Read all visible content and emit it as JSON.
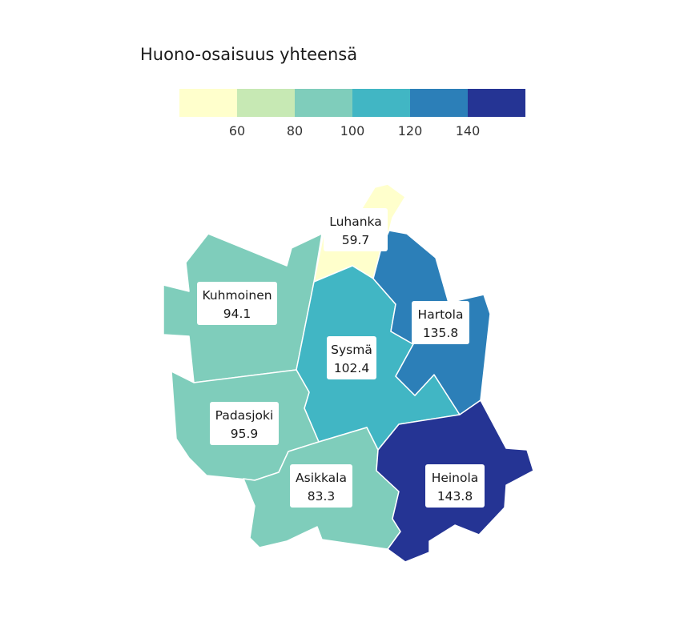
{
  "legend": {
    "title": "Huono-osaisuus yhteensä",
    "colors": [
      "#ffffcc",
      "#c7e9b4",
      "#7fcdbb",
      "#41b6c4",
      "#2c7fb8",
      "#253494"
    ],
    "breaks": [
      60,
      80,
      100,
      120,
      140
    ],
    "tick_labels": [
      "60",
      "80",
      "100",
      "120",
      "140"
    ]
  },
  "regions": [
    {
      "name": "Luhanka",
      "value": "59.7",
      "color": "#ffffcc"
    },
    {
      "name": "Kuhmoinen",
      "value": "94.1",
      "color": "#7fcdbb"
    },
    {
      "name": "Sysmä",
      "value": "102.4",
      "color": "#41b6c4"
    },
    {
      "name": "Hartola",
      "value": "135.8",
      "color": "#2c7fb8"
    },
    {
      "name": "Padasjoki",
      "value": "95.9",
      "color": "#7fcdbb"
    },
    {
      "name": "Asikkala",
      "value": "83.3",
      "color": "#7fcdbb"
    },
    {
      "name": "Heinola",
      "value": "143.8",
      "color": "#253494"
    }
  ]
}
